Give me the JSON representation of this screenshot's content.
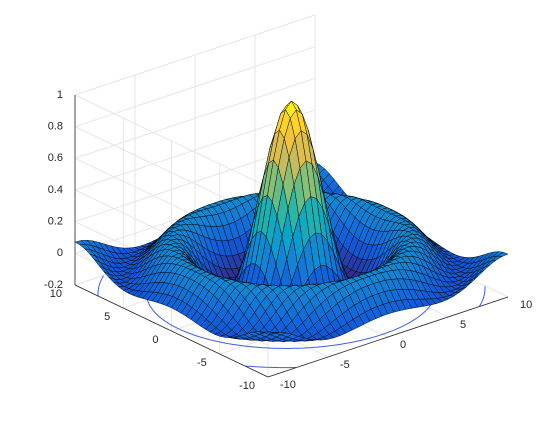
{
  "chart_data": {
    "type": "surface",
    "function": "sin(r)/r, r = sqrt(x^2 + y^2)",
    "title": "",
    "xlabel": "",
    "ylabel": "",
    "zlabel": "",
    "xlim": [
      -10,
      10
    ],
    "ylim": [
      -10,
      10
    ],
    "zlim": [
      -0.2,
      1
    ],
    "grid_step": 0.5,
    "grid": true,
    "view": {
      "azimuth_deg": -37.5,
      "elevation_deg": 30
    },
    "colormap": "parula",
    "colormap_stops": [
      "#352a87",
      "#0f5cdd",
      "#1481d6",
      "#06a4ca",
      "#2eb7a4",
      "#87bf77",
      "#d1bb59",
      "#fec832",
      "#f9fb0e"
    ],
    "edge_color": "#000000",
    "contour_color": "#3f5de8",
    "contour_levels": [
      -0.2,
      -0.1,
      0
    ],
    "x_ticks": [
      "-10",
      "-5",
      "0",
      "5",
      "10"
    ],
    "y_ticks": [
      "-10",
      "-5",
      "0",
      "5",
      "10"
    ],
    "z_ticks": [
      "-0.2",
      "0",
      "0.2",
      "0.4",
      "0.6",
      "0.8",
      "1"
    ],
    "samples": [
      {
        "r": 0,
        "z": 1
      },
      {
        "r": 2,
        "z": 0.45
      },
      {
        "r": 4.49,
        "z": -0.22
      },
      {
        "r": 7.73,
        "z": 0.13
      },
      {
        "r": 10.9,
        "z": -0.09
      }
    ]
  }
}
